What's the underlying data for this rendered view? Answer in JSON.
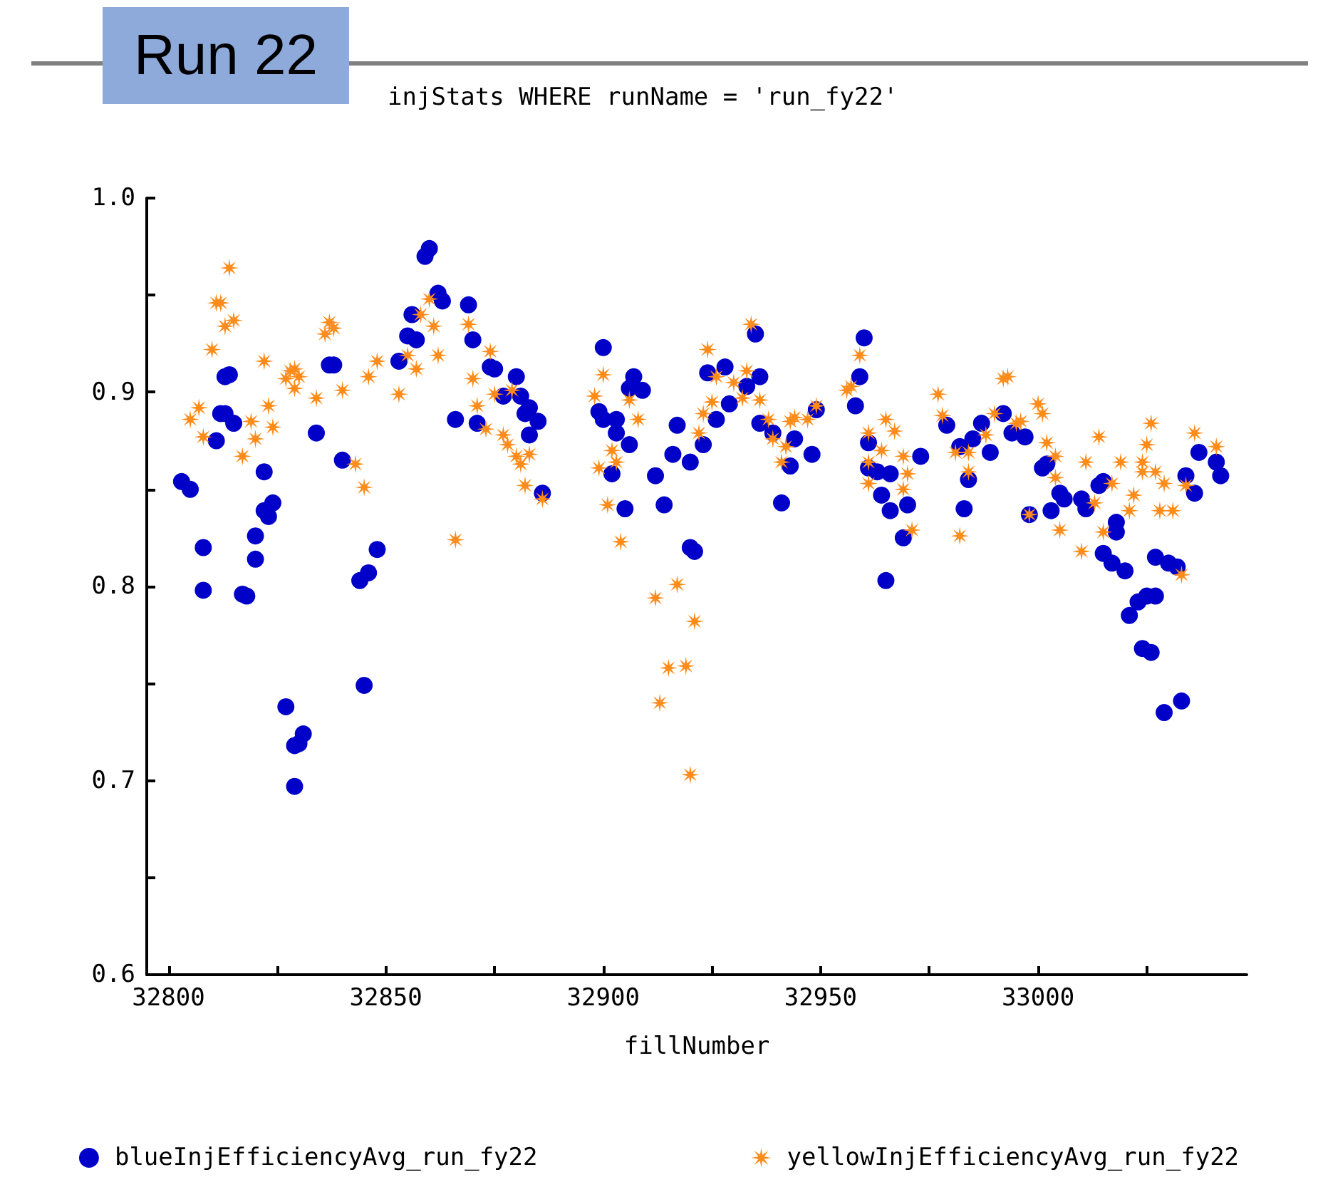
{
  "chart_data": {
    "type": "scatter",
    "title": "Run 22",
    "subtitle": "injStats WHERE runName = 'run_fy22'",
    "xlabel": "fillNumber",
    "xlim": [
      32795,
      33048
    ],
    "xticks": [
      32800,
      {
        "value": 32825,
        "label": null
      },
      32850,
      {
        "value": 32875,
        "label": null
      },
      32900,
      {
        "value": 32925,
        "label": null
      },
      32950,
      {
        "value": 32975,
        "label": null
      },
      33000,
      {
        "value": 33025,
        "label": null
      }
    ],
    "ylim": [
      0.6,
      1.0
    ],
    "yticks": [
      0.6,
      {
        "value": 0.65,
        "label": null
      },
      0.7,
      {
        "value": 0.75,
        "label": null
      },
      0.8,
      {
        "value": 0.85,
        "label": null
      },
      0.9,
      {
        "value": 0.95,
        "label": null
      },
      {
        "value": 1,
        "label": "1.0"
      }
    ],
    "grid": false,
    "legend": "bottom",
    "series": [
      {
        "name": "blueInjEfficiencyAvg_run_fy22",
        "color": "#0000c8",
        "marker": "circle",
        "x": [
          32803,
          32805,
          32808,
          32808,
          32811,
          32812,
          32813,
          32814,
          32813,
          32815,
          32817,
          32818,
          32820,
          32820,
          32822,
          32822,
          32823,
          32824,
          32827,
          32829,
          32830,
          32831,
          32829,
          32834,
          32837,
          32838,
          32840,
          32844,
          32845,
          32846,
          32848,
          32853,
          32856,
          32855,
          32857,
          32859,
          32860,
          32862,
          32863,
          32866,
          32869,
          32870,
          32871,
          32874,
          32875,
          32877,
          32880,
          32881,
          32882,
          32883,
          32883,
          32885,
          32886,
          32900,
          32899,
          32900,
          32903,
          32903,
          32906,
          32902,
          32905,
          32907,
          32906,
          32909,
          32912,
          32914,
          32916,
          32917,
          32920,
          32920,
          32921,
          32923,
          32924,
          32928,
          32926,
          32929,
          32933,
          32935,
          32936,
          32936,
          32939,
          32944,
          32943,
          32941,
          32948,
          32949,
          32960,
          32959,
          32958,
          32961,
          32961,
          32963,
          32966,
          32964,
          32966,
          32965,
          32969,
          32970,
          32973,
          32979,
          32982,
          32983,
          32984,
          32985,
          32987,
          32989,
          32992,
          32994,
          32997,
          32998,
          33001,
          33002,
          33003,
          33005,
          33006,
          33010,
          33011,
          33014,
          33015,
          33018,
          33018,
          33015,
          33017,
          33020,
          33021,
          33023,
          33025,
          33027,
          33024,
          33026,
          33027,
          33030,
          33032,
          33029,
          33033,
          33034,
          33036,
          33037,
          33041,
          33042
        ],
        "values": [
          0.854,
          0.85,
          0.82,
          0.798,
          0.875,
          0.889,
          0.908,
          0.909,
          0.889,
          0.884,
          0.796,
          0.795,
          0.826,
          0.814,
          0.839,
          0.859,
          0.836,
          0.843,
          0.738,
          0.718,
          0.719,
          0.724,
          0.697,
          0.879,
          0.914,
          0.914,
          0.865,
          0.803,
          0.749,
          0.807,
          0.819,
          0.916,
          0.94,
          0.929,
          0.927,
          0.97,
          0.974,
          0.951,
          0.947,
          0.886,
          0.945,
          0.927,
          0.884,
          0.913,
          0.912,
          0.898,
          0.908,
          0.898,
          0.889,
          0.892,
          0.878,
          0.885,
          0.848,
          0.923,
          0.89,
          0.886,
          0.886,
          0.879,
          0.873,
          0.858,
          0.84,
          0.908,
          0.902,
          0.901,
          0.857,
          0.842,
          0.868,
          0.883,
          0.864,
          0.82,
          0.818,
          0.873,
          0.91,
          0.913,
          0.886,
          0.894,
          0.903,
          0.93,
          0.908,
          0.884,
          0.879,
          0.876,
          0.862,
          0.843,
          0.868,
          0.891,
          0.928,
          0.908,
          0.893,
          0.874,
          0.861,
          0.859,
          0.858,
          0.847,
          0.839,
          0.803,
          0.825,
          0.842,
          0.867,
          0.883,
          0.872,
          0.84,
          0.855,
          0.876,
          0.884,
          0.869,
          0.889,
          0.879,
          0.877,
          0.837,
          0.861,
          0.863,
          0.839,
          0.848,
          0.845,
          0.845,
          0.84,
          0.852,
          0.854,
          0.833,
          0.828,
          0.817,
          0.812,
          0.808,
          0.785,
          0.792,
          0.795,
          0.795,
          0.768,
          0.766,
          0.815,
          0.812,
          0.81,
          0.735,
          0.741,
          0.857,
          0.848,
          0.869,
          0.864,
          0.857
        ]
      },
      {
        "name": "yellowInjEfficiencyAvg_run_fy22",
        "color": "#ff8c1a",
        "marker": "star",
        "x": [
          32814,
          32811,
          32812,
          32813,
          32815,
          32810,
          32807,
          32805,
          32808,
          32817,
          32819,
          32820,
          32823,
          32824,
          32822,
          32828,
          32829,
          32830,
          32829,
          32827,
          32834,
          32837,
          32838,
          32836,
          32840,
          32843,
          32845,
          32846,
          32848,
          32853,
          32855,
          32857,
          32858,
          32860,
          32861,
          32862,
          32866,
          32869,
          32870,
          32871,
          32874,
          32875,
          32879,
          32873,
          32877,
          32878,
          32880,
          32881,
          32883,
          32882,
          32886,
          32898,
          32900,
          32899,
          32902,
          32903,
          32901,
          32904,
          32906,
          32908,
          32912,
          32917,
          32913,
          32915,
          32919,
          32921,
          32920,
          32922,
          32923,
          32924,
          32925,
          32926,
          32930,
          32932,
          32933,
          32934,
          32936,
          32938,
          32939,
          32941,
          32942,
          32943,
          32944,
          32947,
          32949,
          32956,
          32957,
          32959,
          32961,
          32964,
          32961,
          32961,
          32965,
          32967,
          32969,
          32969,
          32971,
          32970,
          32977,
          32978,
          32982,
          32981,
          32984,
          32984,
          32988,
          32990,
          32992,
          32993,
          32995,
          32996,
          32998,
          33000,
          33001,
          33002,
          33004,
          33004,
          33005,
          33010,
          33011,
          33013,
          33014,
          33015,
          33017,
          33019,
          33021,
          33022,
          33024,
          33024,
          33025,
          33026,
          33027,
          33028,
          33029,
          33031,
          33033,
          33034,
          33036,
          33041
        ],
        "values": [
          0.964,
          0.946,
          0.946,
          0.934,
          0.937,
          0.922,
          0.892,
          0.886,
          0.877,
          0.867,
          0.885,
          0.876,
          0.893,
          0.882,
          0.916,
          0.911,
          0.912,
          0.908,
          0.902,
          0.907,
          0.897,
          0.936,
          0.933,
          0.93,
          0.901,
          0.863,
          0.851,
          0.908,
          0.916,
          0.899,
          0.919,
          0.912,
          0.94,
          0.948,
          0.934,
          0.919,
          0.824,
          0.935,
          0.907,
          0.893,
          0.921,
          0.899,
          0.901,
          0.881,
          0.878,
          0.873,
          0.867,
          0.863,
          0.868,
          0.852,
          0.845,
          0.898,
          0.909,
          0.861,
          0.87,
          0.864,
          0.842,
          0.823,
          0.896,
          0.886,
          0.794,
          0.801,
          0.74,
          0.758,
          0.759,
          0.782,
          0.703,
          0.879,
          0.889,
          0.922,
          0.895,
          0.908,
          0.905,
          0.897,
          0.911,
          0.935,
          0.896,
          0.886,
          0.876,
          0.864,
          0.872,
          0.885,
          0.887,
          0.886,
          0.893,
          0.901,
          0.903,
          0.919,
          0.879,
          0.87,
          0.864,
          0.853,
          0.886,
          0.88,
          0.867,
          0.85,
          0.829,
          0.858,
          0.899,
          0.888,
          0.826,
          0.869,
          0.869,
          0.859,
          0.878,
          0.889,
          0.907,
          0.908,
          0.884,
          0.885,
          0.837,
          0.894,
          0.889,
          0.874,
          0.867,
          0.856,
          0.829,
          0.818,
          0.864,
          0.843,
          0.877,
          0.828,
          0.853,
          0.864,
          0.839,
          0.847,
          0.864,
          0.859,
          0.873,
          0.884,
          0.859,
          0.839,
          0.853,
          0.839,
          0.806,
          0.852,
          0.879,
          0.872
        ]
      }
    ]
  }
}
